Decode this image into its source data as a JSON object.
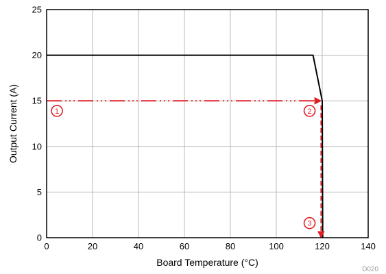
{
  "chart_data": {
    "type": "line",
    "xlabel": "Board Temperature (°C)",
    "ylabel": "Output Current (A)",
    "figure_code": "D020",
    "xlim": [
      0,
      140
    ],
    "ylim": [
      0,
      25
    ],
    "x_ticks": [
      0,
      20,
      40,
      60,
      80,
      100,
      120,
      140
    ],
    "y_ticks": [
      0,
      5,
      10,
      15,
      20,
      25
    ],
    "grid": true,
    "legend": "none",
    "series": [
      {
        "color": "#000000",
        "style": "solid",
        "points": [
          [
            0,
            20
          ],
          [
            116,
            20
          ],
          [
            120,
            15
          ],
          [
            120.2,
            0
          ]
        ]
      },
      {
        "color": "#e01e24",
        "style": "dash-dot-dot",
        "arrow_end": true,
        "points": [
          [
            0,
            15
          ],
          [
            119.5,
            15
          ]
        ]
      },
      {
        "color": "#e01e24",
        "style": "dashed",
        "arrow_end": true,
        "points": [
          [
            119.5,
            14.5
          ],
          [
            119.5,
            0
          ]
        ]
      }
    ],
    "annotations": [
      {
        "label": "1",
        "x": 4.5,
        "y": 13.9
      },
      {
        "label": "2",
        "x": 114.5,
        "y": 13.9
      },
      {
        "label": "3",
        "x": 114.5,
        "y": 1.6
      }
    ]
  }
}
